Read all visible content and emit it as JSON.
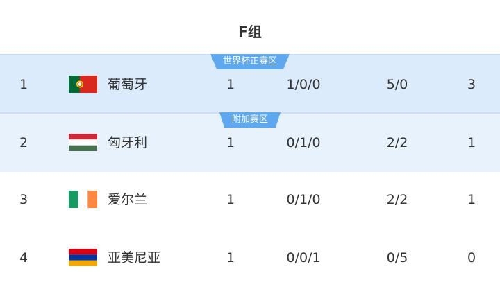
{
  "group_title": "F组",
  "rows": [
    {
      "rank": "1",
      "team": "葡萄牙",
      "flag": "portugal-flag",
      "played": "1",
      "wdl": "1/0/0",
      "goals": "5/0",
      "points": "3",
      "zone_badge": "世界杯正赛区"
    },
    {
      "rank": "2",
      "team": "匈牙利",
      "flag": "hungary-flag",
      "played": "1",
      "wdl": "0/1/0",
      "goals": "2/2",
      "points": "1",
      "zone_badge": "附加赛区"
    },
    {
      "rank": "3",
      "team": "爱尔兰",
      "flag": "ireland-flag",
      "played": "1",
      "wdl": "0/1/0",
      "goals": "2/2",
      "points": "1"
    },
    {
      "rank": "4",
      "team": "亚美尼亚",
      "flag": "armenia-flag",
      "played": "1",
      "wdl": "0/0/1",
      "goals": "0/5",
      "points": "0"
    }
  ],
  "colors": {
    "badge": "#5ea8ef",
    "zone1_bg": "#dcebfb",
    "zone2_bg": "#e8f2fd"
  }
}
